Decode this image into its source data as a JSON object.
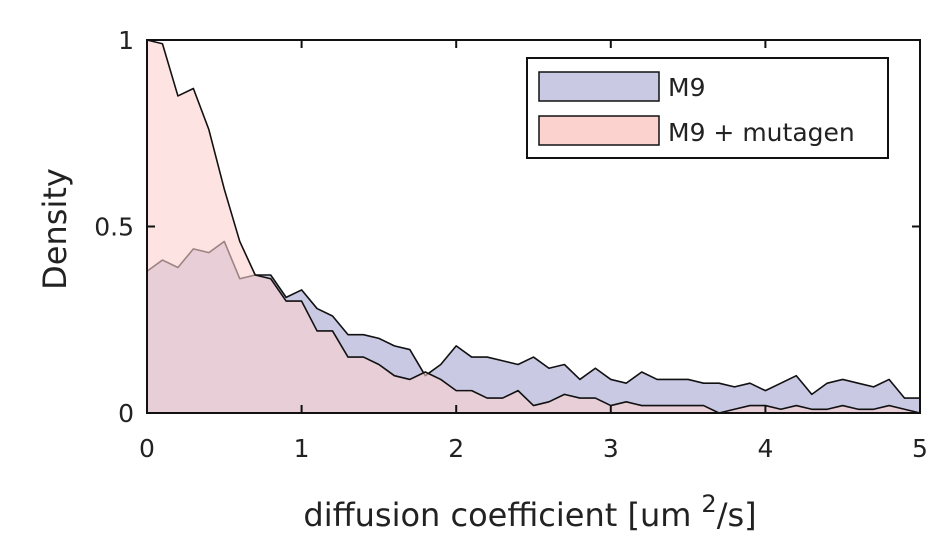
{
  "chart_data": {
    "type": "area",
    "xlabel": "diffusion coefficient [um",
    "xlabel_superscript": "2",
    "xlabel_suffix": "/s]",
    "ylabel": "Density",
    "xlim": [
      0,
      5
    ],
    "ylim": [
      0,
      1
    ],
    "x_ticks": [
      {
        "value": 0,
        "label": "0"
      },
      {
        "value": 1,
        "label": "1"
      },
      {
        "value": 2,
        "label": "2"
      },
      {
        "value": 3,
        "label": "3"
      },
      {
        "value": 4,
        "label": "4"
      },
      {
        "value": 5,
        "label": "5"
      }
    ],
    "y_ticks": [
      {
        "value": 0,
        "label": "0"
      },
      {
        "value": 0.5,
        "label": "0.5"
      },
      {
        "value": 1,
        "label": "1"
      }
    ],
    "grid": false,
    "legend_position": "top-right",
    "x": [
      0,
      0.1,
      0.2,
      0.3,
      0.4,
      0.5,
      0.6,
      0.7,
      0.8,
      0.9,
      1.0,
      1.1,
      1.2,
      1.3,
      1.4,
      1.5,
      1.6,
      1.7,
      1.8,
      1.9,
      2.0,
      2.1,
      2.2,
      2.3,
      2.4,
      2.5,
      2.6,
      2.7,
      2.8,
      2.9,
      3.0,
      3.1,
      3.2,
      3.3,
      3.4,
      3.5,
      3.6,
      3.7,
      3.8,
      3.9,
      4.0,
      4.1,
      4.2,
      4.3,
      4.4,
      4.5,
      4.6,
      4.7,
      4.8,
      4.9,
      5.0
    ],
    "series": [
      {
        "name": "M9",
        "color": "#c9c9e3",
        "values": [
          0.38,
          0.41,
          0.39,
          0.44,
          0.43,
          0.46,
          0.36,
          0.37,
          0.37,
          0.31,
          0.33,
          0.28,
          0.26,
          0.21,
          0.21,
          0.2,
          0.18,
          0.17,
          0.1,
          0.13,
          0.18,
          0.15,
          0.15,
          0.14,
          0.13,
          0.15,
          0.12,
          0.13,
          0.09,
          0.12,
          0.09,
          0.08,
          0.11,
          0.09,
          0.09,
          0.09,
          0.08,
          0.08,
          0.07,
          0.08,
          0.06,
          0.08,
          0.1,
          0.05,
          0.08,
          0.09,
          0.08,
          0.07,
          0.09,
          0.04,
          0.04
        ]
      },
      {
        "name": "M9 + mutagen",
        "color": "#fcd2cf",
        "values": [
          1.0,
          0.99,
          0.85,
          0.87,
          0.76,
          0.6,
          0.46,
          0.37,
          0.36,
          0.3,
          0.3,
          0.22,
          0.22,
          0.15,
          0.15,
          0.13,
          0.1,
          0.09,
          0.11,
          0.09,
          0.06,
          0.06,
          0.04,
          0.04,
          0.06,
          0.02,
          0.03,
          0.05,
          0.04,
          0.04,
          0.02,
          0.03,
          0.02,
          0.02,
          0.02,
          0.02,
          0.02,
          0.0,
          0.01,
          0.02,
          0.02,
          0.01,
          0.02,
          0.01,
          0.01,
          0.02,
          0.01,
          0.01,
          0.02,
          0.01,
          0.0
        ]
      }
    ]
  }
}
